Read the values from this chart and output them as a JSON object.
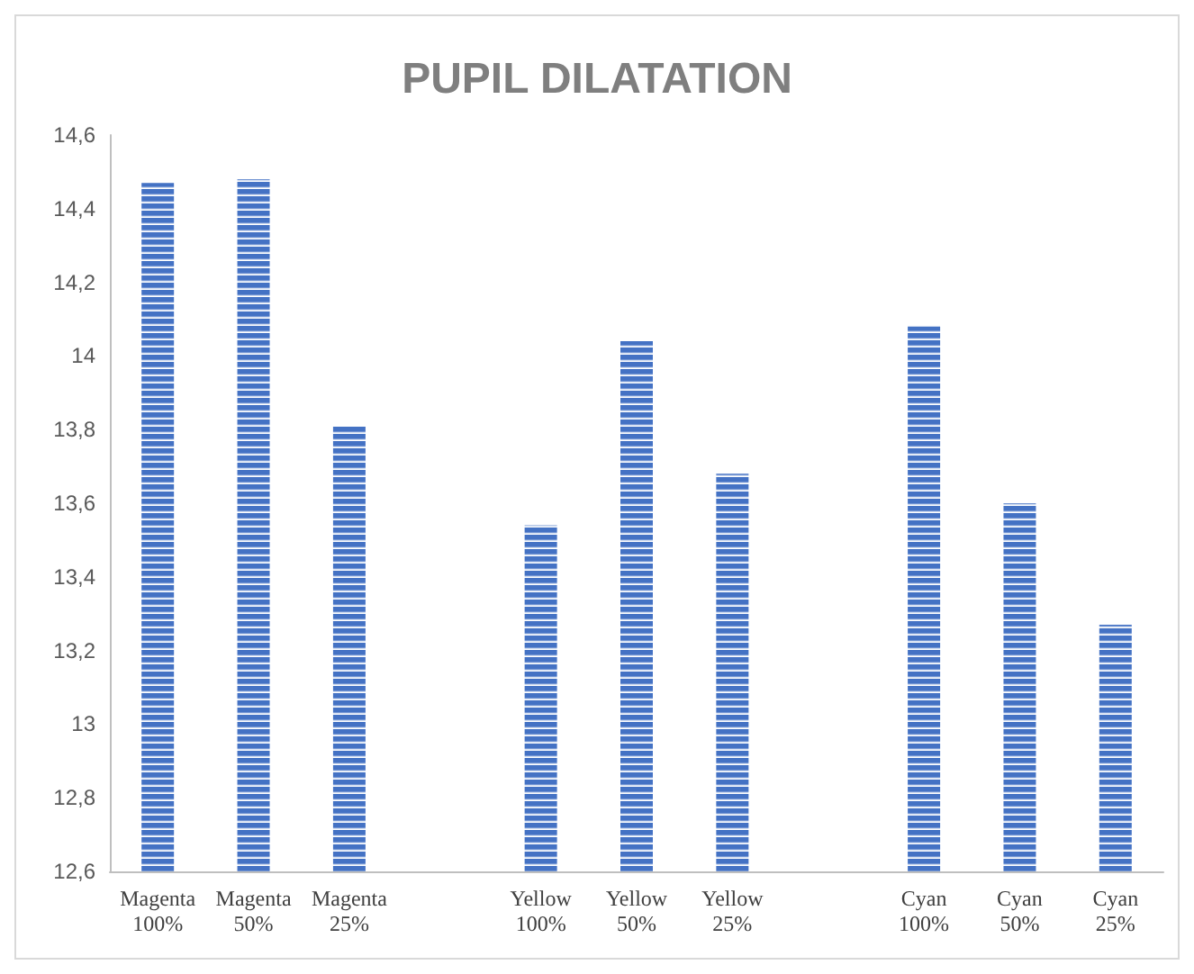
{
  "chart_data": {
    "type": "bar",
    "title": "PUPIL DILATATION",
    "categories": [
      "Magenta 100%",
      "Magenta 50%",
      "Magenta 25%",
      null,
      "Yellow 100%",
      "Yellow 50%",
      "Yellow 25%",
      null,
      "Cyan 100%",
      "Cyan 50%",
      "Cyan 25%"
    ],
    "values": [
      14.47,
      14.48,
      13.81,
      null,
      13.54,
      14.04,
      13.68,
      null,
      14.08,
      13.6,
      13.27
    ],
    "color": "#4472c4",
    "ylim": [
      12.6,
      14.6
    ],
    "yticks": [
      {
        "value": 12.6,
        "label": "12,6"
      },
      {
        "value": 12.8,
        "label": "12,8"
      },
      13,
      {
        "value": 13.2,
        "label": "13,2"
      },
      {
        "value": 13.4,
        "label": "13,4"
      },
      {
        "value": 13.6,
        "label": "13,6"
      },
      {
        "value": 13.8,
        "label": "13,8"
      },
      14,
      {
        "value": 14.2,
        "label": "14,2"
      },
      {
        "value": 14.4,
        "label": "14,4"
      },
      {
        "value": 14.6,
        "label": "14,6"
      }
    ],
    "grid": false
  }
}
